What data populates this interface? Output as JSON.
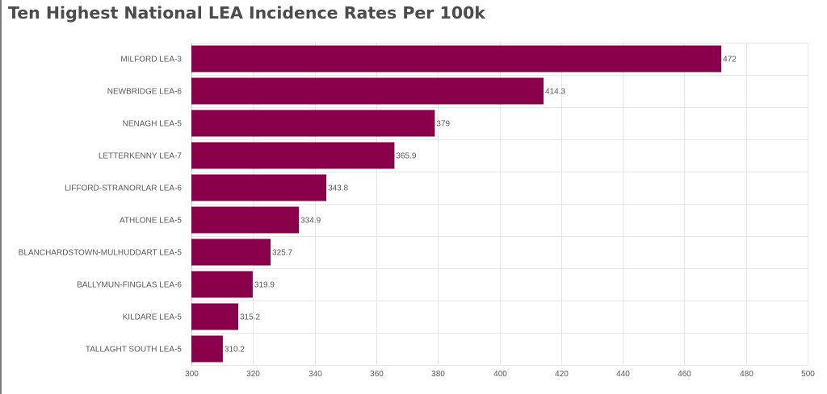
{
  "chart_data": {
    "type": "bar",
    "orientation": "horizontal",
    "title": "Ten Highest National LEA Incidence Rates Per 100k",
    "xlabel": "",
    "ylabel": "",
    "categories": [
      "MILFORD LEA-3",
      "NEWBRIDGE LEA-6",
      "NENAGH LEA-5",
      "LETTERKENNY LEA-7",
      "LIFFORD-STRANORLAR LEA-6",
      "ATHLONE LEA-5",
      "BLANCHARDSTOWN-MULHUDDART LEA-5",
      "BALLYMUN-FINGLAS LEA-6",
      "KILDARE LEA-5",
      "TALLAGHT SOUTH LEA-5"
    ],
    "values": [
      472,
      414.3,
      379,
      365.9,
      343.8,
      334.9,
      325.7,
      319.9,
      315.2,
      310.2
    ],
    "value_labels": [
      "472",
      "414.3",
      "379",
      "365.9",
      "343.8",
      "334.9",
      "325.7",
      "319.9",
      "315.2",
      "310.2"
    ],
    "xlim": [
      300,
      500
    ],
    "xticks": [
      300,
      320,
      340,
      360,
      380,
      400,
      420,
      440,
      460,
      480,
      500
    ],
    "bar_color": "#8b004b",
    "grid": true,
    "legend": "none"
  }
}
